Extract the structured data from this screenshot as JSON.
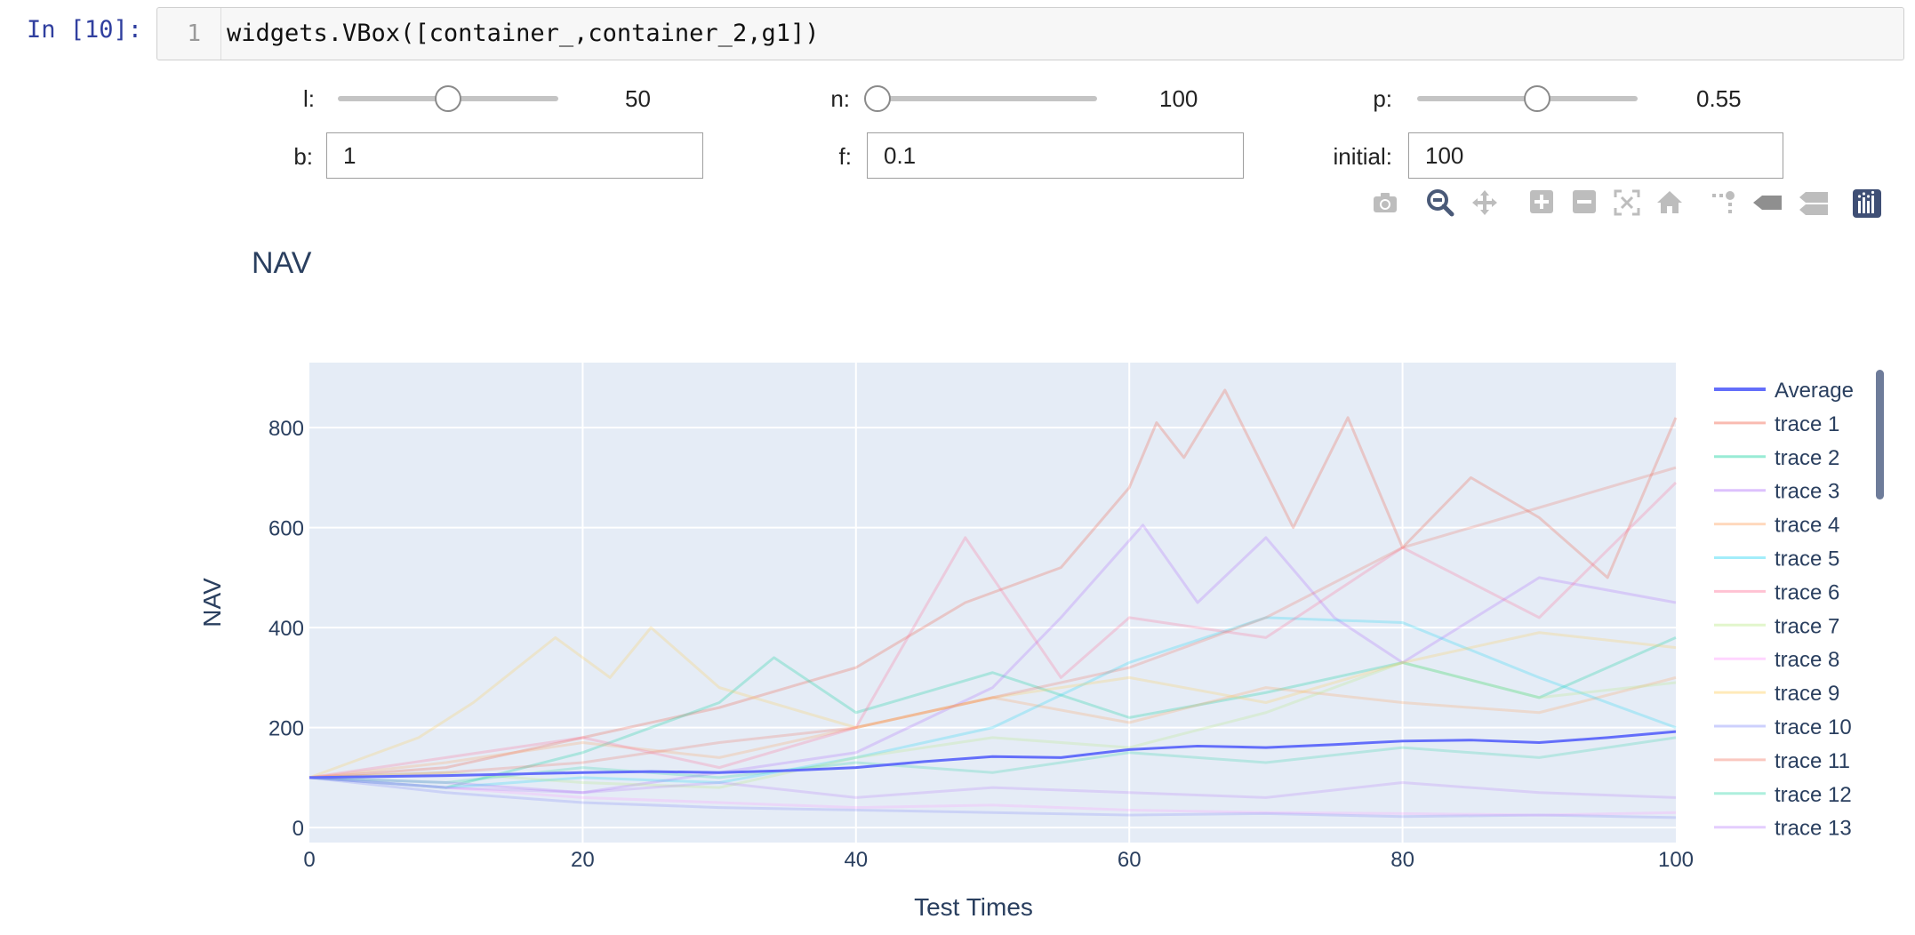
{
  "cell": {
    "prompt": "In [10]:",
    "line_number": "1",
    "code": "widgets.VBox([container_,container_2,g1])"
  },
  "widgets": {
    "l": {
      "label": "l:",
      "value": "50",
      "fraction": 0.5
    },
    "n": {
      "label": "n:",
      "value": "100",
      "fraction": 0.0
    },
    "p": {
      "label": "p:",
      "value": "0.55",
      "fraction": 0.55
    },
    "b": {
      "label": "b:",
      "value": "1"
    },
    "f": {
      "label": "f:",
      "value": "0.1"
    },
    "initial": {
      "label": "initial:",
      "value": "100"
    }
  },
  "modebar": {
    "icons": [
      "camera-icon",
      "zoom-icon",
      "pan-icon",
      "zoom-in-icon",
      "zoom-out-icon",
      "autoscale-icon",
      "reset-axes-icon",
      "spike-lines-icon",
      "hover-closest-icon",
      "hover-compare-icon",
      "plotly-logo-icon"
    ],
    "active": "zoom-icon"
  },
  "chart_data": {
    "type": "line",
    "title": "NAV",
    "xlabel": "Test Times",
    "ylabel": "NAV",
    "xlim": [
      0,
      100
    ],
    "ylim": [
      -30,
      930
    ],
    "xticks": [
      0,
      20,
      40,
      60,
      80,
      100
    ],
    "yticks": [
      0,
      200,
      400,
      600,
      800
    ],
    "grid": true,
    "legend_position": "right",
    "background": "#e5ecf6",
    "series": [
      {
        "name": "Average",
        "color": "#636efa",
        "opacity": 1.0,
        "width": 3,
        "x": [
          0,
          5,
          10,
          15,
          20,
          25,
          30,
          35,
          40,
          45,
          50,
          55,
          60,
          65,
          70,
          75,
          80,
          85,
          90,
          95,
          100
        ],
        "y": [
          100,
          102,
          104,
          107,
          110,
          112,
          110,
          114,
          120,
          132,
          142,
          140,
          156,
          163,
          160,
          166,
          173,
          175,
          170,
          180,
          192
        ]
      },
      {
        "name": "trace 1",
        "color": "#ef553b",
        "opacity": 0.25,
        "width": 3,
        "x": [
          0,
          10,
          20,
          30,
          40,
          48,
          55,
          60,
          62,
          64,
          67,
          72,
          76,
          80,
          85,
          90,
          95,
          100
        ],
        "y": [
          100,
          120,
          180,
          240,
          320,
          450,
          520,
          680,
          810,
          740,
          875,
          600,
          820,
          560,
          700,
          620,
          500,
          820
        ]
      },
      {
        "name": "trace 2",
        "color": "#00cc96",
        "opacity": 0.25,
        "width": 3,
        "x": [
          0,
          10,
          20,
          30,
          34,
          40,
          50,
          60,
          70,
          80,
          90,
          100
        ],
        "y": [
          100,
          80,
          150,
          250,
          340,
          230,
          310,
          220,
          270,
          330,
          260,
          380
        ]
      },
      {
        "name": "trace 3",
        "color": "#ab63fa",
        "opacity": 0.25,
        "width": 3,
        "x": [
          0,
          10,
          20,
          30,
          40,
          50,
          55,
          61,
          65,
          70,
          75,
          80,
          90,
          100
        ],
        "y": [
          100,
          90,
          70,
          110,
          150,
          280,
          420,
          605,
          450,
          580,
          420,
          330,
          500,
          450
        ]
      },
      {
        "name": "trace 4",
        "color": "#ffa15a",
        "opacity": 0.25,
        "width": 3,
        "x": [
          0,
          10,
          20,
          30,
          40,
          50,
          60,
          70,
          80,
          90,
          100
        ],
        "y": [
          100,
          130,
          170,
          140,
          200,
          260,
          210,
          280,
          250,
          230,
          300
        ]
      },
      {
        "name": "trace 5",
        "color": "#19d3f3",
        "opacity": 0.25,
        "width": 3,
        "x": [
          0,
          10,
          20,
          30,
          40,
          50,
          60,
          70,
          80,
          90,
          100
        ],
        "y": [
          100,
          80,
          100,
          90,
          140,
          200,
          330,
          420,
          410,
          300,
          200
        ]
      },
      {
        "name": "trace 6",
        "color": "#ff6692",
        "opacity": 0.25,
        "width": 3,
        "x": [
          0,
          10,
          20,
          30,
          40,
          48,
          55,
          60,
          70,
          80,
          90,
          100
        ],
        "y": [
          100,
          140,
          180,
          120,
          200,
          580,
          300,
          420,
          380,
          560,
          420,
          690
        ]
      },
      {
        "name": "trace 7",
        "color": "#b6e880",
        "opacity": 0.25,
        "width": 3,
        "x": [
          0,
          10,
          20,
          30,
          40,
          50,
          60,
          70,
          80,
          90,
          100
        ],
        "y": [
          100,
          110,
          90,
          80,
          140,
          180,
          160,
          230,
          330,
          260,
          290
        ]
      },
      {
        "name": "trace 8",
        "color": "#ff97ff",
        "opacity": 0.25,
        "width": 3,
        "x": [
          0,
          10,
          20,
          30,
          40,
          50,
          60,
          70,
          80,
          90,
          100
        ],
        "y": [
          100,
          80,
          60,
          50,
          40,
          45,
          35,
          30,
          28,
          25,
          30
        ]
      },
      {
        "name": "trace 9",
        "color": "#fecb52",
        "opacity": 0.25,
        "width": 3,
        "x": [
          0,
          8,
          12,
          18,
          22,
          25,
          30,
          40,
          50,
          60,
          70,
          80,
          90,
          100
        ],
        "y": [
          100,
          180,
          250,
          380,
          300,
          400,
          280,
          200,
          260,
          300,
          250,
          330,
          390,
          360
        ]
      },
      {
        "name": "trace 10",
        "color": "#636efa",
        "opacity": 0.2,
        "width": 3,
        "x": [
          0,
          10,
          20,
          30,
          40,
          50,
          60,
          70,
          80,
          90,
          100
        ],
        "y": [
          100,
          70,
          50,
          40,
          35,
          30,
          25,
          28,
          22,
          25,
          20
        ]
      },
      {
        "name": "trace 11",
        "color": "#ef553b",
        "opacity": 0.2,
        "width": 3,
        "x": [
          0,
          10,
          20,
          30,
          40,
          50,
          60,
          70,
          80,
          90,
          100
        ],
        "y": [
          100,
          110,
          130,
          170,
          200,
          260,
          320,
          420,
          560,
          640,
          720
        ]
      },
      {
        "name": "trace 12",
        "color": "#00cc96",
        "opacity": 0.2,
        "width": 3,
        "x": [
          0,
          10,
          20,
          30,
          40,
          50,
          60,
          70,
          80,
          90,
          100
        ],
        "y": [
          100,
          90,
          120,
          100,
          130,
          110,
          150,
          130,
          160,
          140,
          180
        ]
      },
      {
        "name": "trace 13",
        "color": "#ab63fa",
        "opacity": 0.2,
        "width": 3,
        "x": [
          0,
          10,
          20,
          30,
          40,
          50,
          60,
          70,
          80,
          90,
          100
        ],
        "y": [
          100,
          80,
          70,
          90,
          60,
          80,
          70,
          60,
          90,
          70,
          60
        ]
      }
    ]
  }
}
